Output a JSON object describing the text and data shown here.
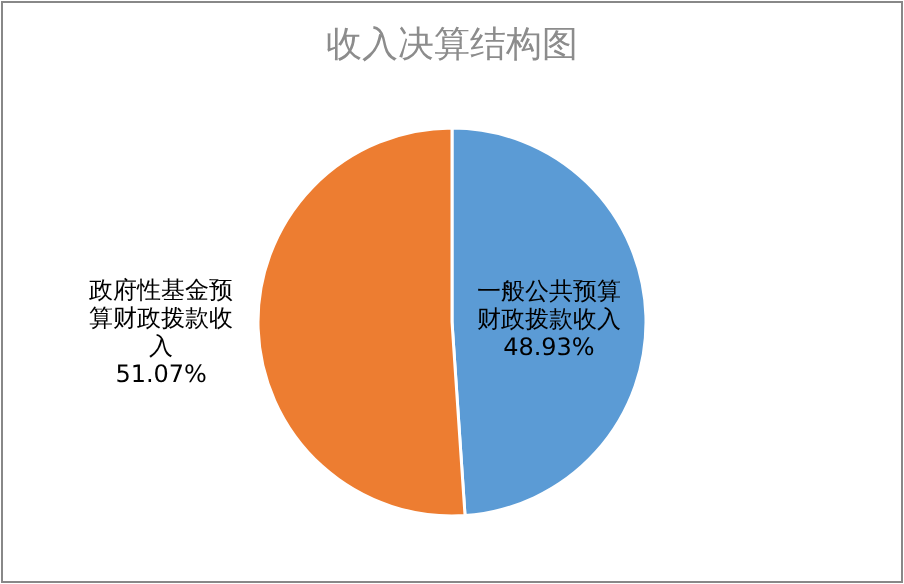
{
  "chart_data": {
    "type": "pie",
    "title": "收入决算结构图",
    "categories": [
      "一般公共预算财政拨款收入",
      "政府性基金预算财政拨款收入"
    ],
    "values": [
      48.93,
      51.07
    ],
    "colors": [
      "#5b9bd5",
      "#ed7d31"
    ],
    "value_labels": [
      "48.93%",
      "51.07%"
    ]
  }
}
